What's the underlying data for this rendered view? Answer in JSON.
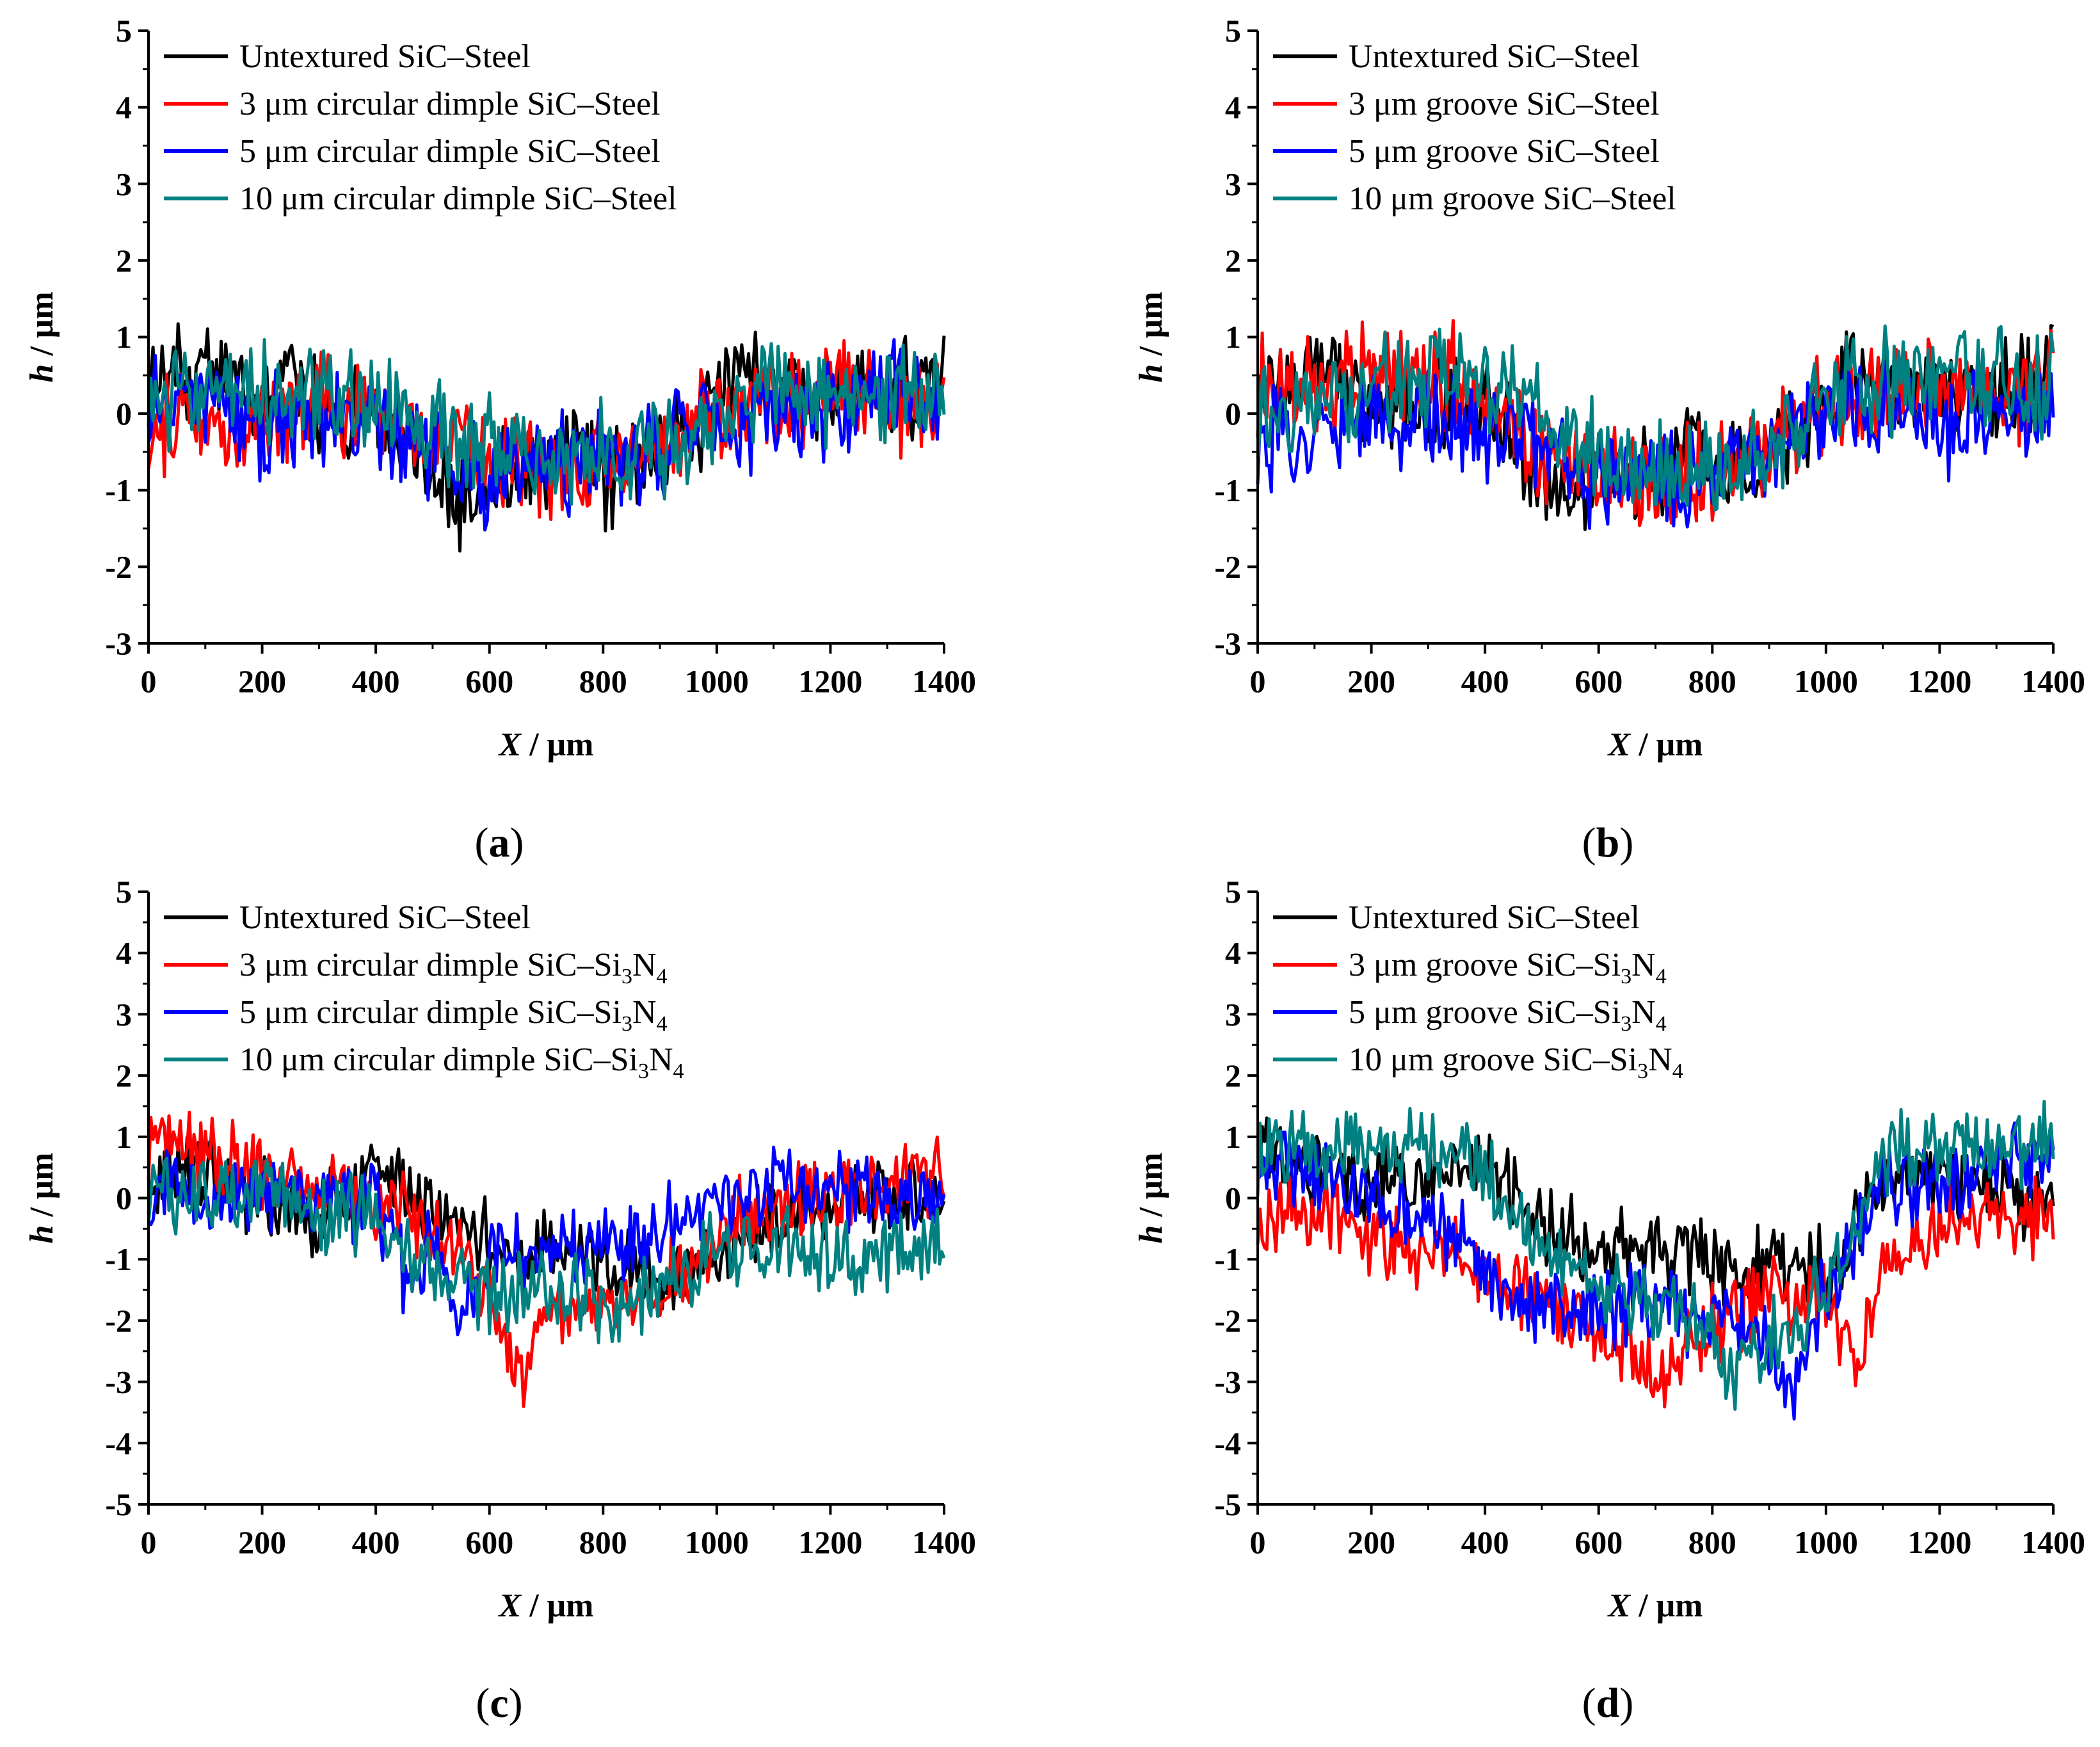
{
  "colors": {
    "untextured": "#000000",
    "three_um": "#ff0000",
    "five_um": "#0000ff",
    "ten_um": "#008080"
  },
  "chart_data": [
    {
      "type": "line",
      "panel": "(a)",
      "xlabel_italic": "X",
      "xlabel_unit": " / μm",
      "ylabel_italic": "h",
      "ylabel_unit": " / μm",
      "xlim": [
        0,
        1400
      ],
      "ylim": [
        -3,
        5
      ],
      "xticks": [
        0,
        200,
        400,
        600,
        800,
        1000,
        1200,
        1400
      ],
      "yticks": [
        -3,
        -2,
        -1,
        0,
        1,
        2,
        3,
        4,
        5
      ],
      "legend_position": "top-left",
      "series": [
        {
          "name": "Untextured SiC–Steel",
          "color_key": "untextured",
          "x": [
            0,
            100,
            200,
            300,
            400,
            500,
            550,
            600,
            700,
            760,
            800,
            900,
            950,
            1000,
            1030,
            1100,
            1200,
            1250,
            1300,
            1400
          ],
          "y": [
            0.3,
            0.6,
            0.3,
            0.2,
            0.0,
            -0.8,
            -1.2,
            -0.9,
            -0.8,
            -0.4,
            -1.0,
            -0.4,
            -0.3,
            0.2,
            0.6,
            0.3,
            0.3,
            0.4,
            0.2,
            0.5
          ]
        },
        {
          "name": "3 μm circular dimple SiC–Steel",
          "color_key": "three_um",
          "x": [
            0,
            100,
            200,
            300,
            400,
            500,
            600,
            700,
            800,
            900,
            1000,
            1100,
            1200,
            1300,
            1400
          ],
          "y": [
            -0.3,
            0.0,
            -0.1,
            0.1,
            0.0,
            -0.3,
            -0.6,
            -0.7,
            -0.7,
            -0.3,
            -0.1,
            0.2,
            0.3,
            0.1,
            0.2
          ]
        },
        {
          "name": "5 μm circular dimple SiC–Steel",
          "color_key": "five_um",
          "x": [
            0,
            100,
            200,
            300,
            400,
            500,
            600,
            700,
            800,
            900,
            1000,
            1100,
            1200,
            1300,
            1400
          ],
          "y": [
            0.0,
            0.2,
            -0.2,
            -0.1,
            -0.1,
            -0.5,
            -0.8,
            -0.6,
            -0.6,
            -0.4,
            -0.2,
            0.0,
            0.1,
            0.4,
            0.0
          ]
        },
        {
          "name": "10 μm circular dimple SiC–Steel",
          "color_key": "ten_um",
          "x": [
            0,
            100,
            200,
            300,
            400,
            500,
            600,
            700,
            800,
            900,
            1000,
            1100,
            1200,
            1300,
            1400
          ],
          "y": [
            0.2,
            0.2,
            0.3,
            0.2,
            0.3,
            -0.2,
            -0.5,
            -0.6,
            -0.5,
            -0.5,
            0.0,
            0.3,
            0.3,
            0.3,
            0.2
          ]
        }
      ]
    },
    {
      "type": "line",
      "panel": "(b)",
      "xlabel_italic": "X",
      "xlabel_unit": " / μm",
      "ylabel_italic": "h",
      "ylabel_unit": " / μm",
      "xlim": [
        0,
        1400
      ],
      "ylim": [
        -3,
        5
      ],
      "xticks": [
        0,
        200,
        400,
        600,
        800,
        1000,
        1200,
        1400
      ],
      "yticks": [
        -3,
        -2,
        -1,
        0,
        1,
        2,
        3,
        4,
        5
      ],
      "legend_position": "top-left",
      "series": [
        {
          "name": "Untextured SiC–Steel",
          "color_key": "untextured",
          "x": [
            0,
            100,
            200,
            300,
            400,
            500,
            550,
            600,
            700,
            760,
            800,
            900,
            950,
            1000,
            1030,
            1100,
            1200,
            1250,
            1300,
            1400
          ],
          "y": [
            0.3,
            0.6,
            0.3,
            0.2,
            0.0,
            -0.8,
            -1.2,
            -0.9,
            -0.8,
            -0.4,
            -1.0,
            -0.4,
            -0.3,
            0.2,
            0.6,
            0.3,
            0.3,
            0.4,
            0.2,
            0.5
          ]
        },
        {
          "name": "3 μm groove SiC–Steel",
          "color_key": "three_um",
          "x": [
            0,
            100,
            200,
            300,
            400,
            500,
            600,
            700,
            800,
            900,
            1000,
            1100,
            1200,
            1300,
            1400
          ],
          "y": [
            0.3,
            0.3,
            0.5,
            0.6,
            0.3,
            -0.5,
            -0.8,
            -0.9,
            -0.8,
            -0.5,
            0.2,
            0.3,
            0.2,
            0.3,
            0.4
          ]
        },
        {
          "name": "5 μm groove SiC–Steel",
          "color_key": "five_um",
          "x": [
            0,
            100,
            200,
            300,
            400,
            500,
            600,
            700,
            800,
            900,
            1000,
            1100,
            1200,
            1300,
            1400
          ],
          "y": [
            -0.4,
            -0.2,
            0.0,
            0.0,
            -0.3,
            -0.5,
            -0.8,
            -0.9,
            -0.8,
            -0.5,
            0.1,
            0.0,
            -0.3,
            0.0,
            -0.2
          ]
        },
        {
          "name": "10 μm groove SiC–Steel",
          "color_key": "ten_um",
          "x": [
            0,
            100,
            200,
            300,
            400,
            500,
            600,
            700,
            800,
            900,
            1000,
            1100,
            1200,
            1300,
            1400
          ],
          "y": [
            -0.1,
            0.1,
            0.3,
            0.4,
            0.4,
            0.0,
            -0.6,
            -0.8,
            -0.8,
            -0.5,
            0.3,
            0.4,
            0.4,
            0.5,
            0.3
          ]
        }
      ]
    },
    {
      "type": "line",
      "panel": "(c)",
      "xlabel_italic": "X",
      "xlabel_unit": " / μm",
      "ylabel_italic": "h",
      "ylabel_unit": " / μm",
      "xlim": [
        0,
        1400
      ],
      "ylim": [
        -5,
        5
      ],
      "xticks": [
        0,
        200,
        400,
        600,
        800,
        1000,
        1200,
        1400
      ],
      "yticks": [
        -5,
        -4,
        -3,
        -2,
        -1,
        0,
        1,
        2,
        3,
        4,
        5
      ],
      "legend_position": "top-left",
      "series": [
        {
          "name": "Untextured SiC–Steel",
          "color_key": "untextured",
          "x": [
            0,
            100,
            200,
            300,
            400,
            500,
            600,
            700,
            800,
            900,
            1000,
            1100,
            1200,
            1300,
            1400
          ],
          "y": [
            0.5,
            0.3,
            0.0,
            -0.3,
            0.5,
            -0.3,
            -0.7,
            -0.8,
            -1.0,
            -1.2,
            -1.0,
            -0.3,
            0.0,
            0.1,
            0.2
          ]
        },
        {
          "name": "3 μm circular dimple SiC–Si3N4",
          "color_key": "three_um",
          "x": [
            0,
            100,
            200,
            300,
            400,
            500,
            600,
            660,
            700,
            800,
            900,
            1000,
            1100,
            1200,
            1300,
            1400
          ],
          "y": [
            1.0,
            0.8,
            0.3,
            0.0,
            0.0,
            -0.6,
            -1.5,
            -3.0,
            -1.8,
            -1.8,
            -1.6,
            -0.5,
            -0.3,
            0.0,
            0.2,
            0.5
          ]
        },
        {
          "name": "5 μm circular dimple SiC–Si3N4",
          "color_key": "five_um",
          "x": [
            0,
            100,
            200,
            300,
            400,
            460,
            500,
            545,
            600,
            700,
            800,
            900,
            1000,
            1100,
            1200,
            1300,
            1400
          ],
          "y": [
            0.3,
            0.0,
            -0.1,
            0.0,
            0.0,
            -1.5,
            -0.7,
            -2.2,
            -0.9,
            -1.0,
            -0.7,
            -0.5,
            0.0,
            0.3,
            0.2,
            0.0,
            0.2
          ]
        },
        {
          "name": "10 μm circular dimple SiC–Si3N4",
          "color_key": "ten_um",
          "x": [
            0,
            100,
            200,
            300,
            400,
            500,
            600,
            700,
            800,
            900,
            1000,
            1100,
            1200,
            1300,
            1400
          ],
          "y": [
            0.2,
            0.0,
            0.2,
            -0.3,
            -0.3,
            -1.2,
            -1.5,
            -1.6,
            -1.7,
            -1.5,
            -0.8,
            -0.8,
            -1.0,
            -0.8,
            -0.6
          ]
        }
      ]
    },
    {
      "type": "line",
      "panel": "(d)",
      "xlabel_italic": "X",
      "xlabel_unit": " / μm",
      "ylabel_italic": "h",
      "ylabel_unit": " / μm",
      "xlim": [
        0,
        1400
      ],
      "ylim": [
        -5,
        5
      ],
      "xticks": [
        0,
        200,
        400,
        600,
        800,
        1000,
        1200,
        1400
      ],
      "yticks": [
        -5,
        -4,
        -3,
        -2,
        -1,
        0,
        1,
        2,
        3,
        4,
        5
      ],
      "legend_position": "top-left",
      "series": [
        {
          "name": "Untextured SiC–Steel",
          "color_key": "untextured",
          "x": [
            0,
            100,
            200,
            300,
            400,
            450,
            500,
            600,
            700,
            800,
            900,
            1000,
            1100,
            1200,
            1300,
            1400
          ],
          "y": [
            0.8,
            0.3,
            0.2,
            0.3,
            0.6,
            0.2,
            -0.5,
            -0.8,
            -0.8,
            -1.0,
            -1.1,
            -1.2,
            0.3,
            0.4,
            0.2,
            0.0
          ]
        },
        {
          "name": "3 μm groove SiC–Si3N4",
          "color_key": "three_um",
          "x": [
            0,
            100,
            200,
            300,
            400,
            500,
            600,
            700,
            800,
            900,
            1000,
            1060,
            1100,
            1200,
            1300,
            1400
          ],
          "y": [
            -0.5,
            -0.3,
            -0.6,
            -0.9,
            -1.2,
            -1.6,
            -2.0,
            -3.0,
            -2.0,
            -1.6,
            -1.5,
            -2.8,
            -1.0,
            -0.6,
            -0.3,
            -0.3
          ]
        },
        {
          "name": "5 μm groove SiC–Si3N4",
          "color_key": "five_um",
          "x": [
            0,
            100,
            200,
            300,
            400,
            450,
            500,
            600,
            700,
            800,
            900,
            940,
            1000,
            1100,
            1200,
            1300,
            1400
          ],
          "y": [
            0.5,
            0.4,
            0.0,
            -0.3,
            -1.0,
            -1.8,
            -1.7,
            -1.8,
            -1.8,
            -1.9,
            -2.4,
            -3.2,
            -1.5,
            0.2,
            0.2,
            0.5,
            0.8
          ]
        },
        {
          "name": "10 μm groove SiC–Si3N4",
          "color_key": "ten_um",
          "x": [
            0,
            100,
            200,
            250,
            300,
            400,
            500,
            600,
            700,
            800,
            820,
            900,
            1000,
            1100,
            1200,
            1300,
            1400
          ],
          "y": [
            0.8,
            0.8,
            0.6,
            1.0,
            0.8,
            0.5,
            -0.8,
            -1.5,
            -1.7,
            -2.2,
            -3.0,
            -2.4,
            -1.5,
            0.6,
            0.8,
            0.8,
            0.9
          ]
        }
      ]
    }
  ]
}
